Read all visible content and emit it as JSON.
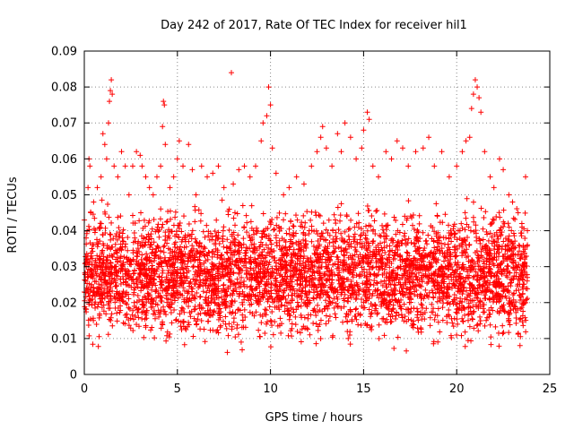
{
  "chart_data": {
    "type": "scatter",
    "title": "Day 242 of 2017, Rate Of TEC Index for receiver hil1",
    "xlabel": "GPS time / hours",
    "ylabel": "ROTI / TECUs",
    "xlim": [
      0,
      25
    ],
    "ylim": [
      0,
      0.09
    ],
    "x_ticks": [
      0,
      5,
      10,
      15,
      20,
      25
    ],
    "y_ticks": [
      0,
      0.01,
      0.02,
      0.03,
      0.04,
      0.05,
      0.06,
      0.07,
      0.08,
      0.09
    ],
    "x_tick_labels": [
      "0",
      "5",
      "10",
      "15",
      "20",
      "25"
    ],
    "y_tick_labels": [
      "0",
      "0.01",
      "0.02",
      "0.03",
      "0.04",
      "0.05",
      "0.06",
      "0.07",
      "0.08",
      "0.09"
    ],
    "grid": true,
    "grid_style": "dotted",
    "marker": "+",
    "color": "#ff0000",
    "x_range_observed": [
      0,
      23.8
    ],
    "dense_band": [
      0.005,
      0.045
    ],
    "points": [
      [
        0.1,
        0.038
      ],
      [
        0.2,
        0.052
      ],
      [
        0.25,
        0.06
      ],
      [
        0.3,
        0.058
      ],
      [
        0.35,
        0.045
      ],
      [
        0.5,
        0.048
      ],
      [
        0.7,
        0.052
      ],
      [
        0.9,
        0.055
      ],
      [
        1.0,
        0.067
      ],
      [
        1.1,
        0.064
      ],
      [
        1.2,
        0.06
      ],
      [
        1.3,
        0.07
      ],
      [
        1.35,
        0.076
      ],
      [
        1.4,
        0.079
      ],
      [
        1.45,
        0.082
      ],
      [
        1.5,
        0.078
      ],
      [
        1.6,
        0.058
      ],
      [
        1.8,
        0.055
      ],
      [
        2.0,
        0.062
      ],
      [
        2.2,
        0.058
      ],
      [
        2.4,
        0.05
      ],
      [
        2.6,
        0.058
      ],
      [
        2.8,
        0.062
      ],
      [
        3.0,
        0.061
      ],
      [
        3.1,
        0.058
      ],
      [
        3.3,
        0.055
      ],
      [
        3.5,
        0.052
      ],
      [
        3.7,
        0.05
      ],
      [
        3.9,
        0.055
      ],
      [
        4.1,
        0.058
      ],
      [
        4.2,
        0.069
      ],
      [
        4.25,
        0.076
      ],
      [
        4.3,
        0.075
      ],
      [
        4.35,
        0.064
      ],
      [
        4.6,
        0.052
      ],
      [
        4.8,
        0.055
      ],
      [
        5.0,
        0.06
      ],
      [
        5.1,
        0.065
      ],
      [
        5.3,
        0.058
      ],
      [
        5.6,
        0.064
      ],
      [
        5.8,
        0.057
      ],
      [
        6.0,
        0.05
      ],
      [
        6.3,
        0.058
      ],
      [
        6.6,
        0.055
      ],
      [
        6.9,
        0.056
      ],
      [
        7.2,
        0.058
      ],
      [
        7.5,
        0.052
      ],
      [
        7.9,
        0.084
      ],
      [
        8.0,
        0.053
      ],
      [
        8.3,
        0.057
      ],
      [
        8.6,
        0.058
      ],
      [
        8.9,
        0.055
      ],
      [
        9.2,
        0.058
      ],
      [
        9.5,
        0.065
      ],
      [
        9.6,
        0.07
      ],
      [
        9.8,
        0.072
      ],
      [
        9.9,
        0.08
      ],
      [
        10.0,
        0.075
      ],
      [
        10.1,
        0.063
      ],
      [
        10.3,
        0.056
      ],
      [
        10.7,
        0.05
      ],
      [
        11.0,
        0.052
      ],
      [
        11.4,
        0.055
      ],
      [
        11.8,
        0.053
      ],
      [
        12.2,
        0.058
      ],
      [
        12.5,
        0.062
      ],
      [
        12.7,
        0.066
      ],
      [
        12.8,
        0.069
      ],
      [
        13.0,
        0.063
      ],
      [
        13.3,
        0.058
      ],
      [
        13.6,
        0.067
      ],
      [
        13.8,
        0.062
      ],
      [
        14.0,
        0.07
      ],
      [
        14.3,
        0.066
      ],
      [
        14.6,
        0.06
      ],
      [
        14.9,
        0.063
      ],
      [
        15.0,
        0.068
      ],
      [
        15.2,
        0.073
      ],
      [
        15.3,
        0.071
      ],
      [
        15.5,
        0.058
      ],
      [
        15.8,
        0.055
      ],
      [
        16.2,
        0.062
      ],
      [
        16.5,
        0.06
      ],
      [
        16.8,
        0.065
      ],
      [
        17.1,
        0.063
      ],
      [
        17.4,
        0.058
      ],
      [
        17.8,
        0.062
      ],
      [
        18.2,
        0.063
      ],
      [
        18.5,
        0.066
      ],
      [
        18.8,
        0.058
      ],
      [
        19.2,
        0.062
      ],
      [
        19.6,
        0.055
      ],
      [
        20.0,
        0.058
      ],
      [
        20.3,
        0.062
      ],
      [
        20.5,
        0.065
      ],
      [
        20.7,
        0.066
      ],
      [
        20.8,
        0.074
      ],
      [
        20.9,
        0.078
      ],
      [
        21.0,
        0.082
      ],
      [
        21.1,
        0.08
      ],
      [
        21.2,
        0.077
      ],
      [
        21.3,
        0.073
      ],
      [
        21.5,
        0.062
      ],
      [
        21.8,
        0.055
      ],
      [
        22.0,
        0.052
      ],
      [
        22.3,
        0.06
      ],
      [
        22.5,
        0.057
      ],
      [
        22.8,
        0.05
      ],
      [
        23.0,
        0.048
      ],
      [
        23.3,
        0.045
      ],
      [
        23.5,
        0.042
      ],
      [
        23.7,
        0.055
      ],
      [
        23.8,
        0.04
      ]
    ]
  }
}
